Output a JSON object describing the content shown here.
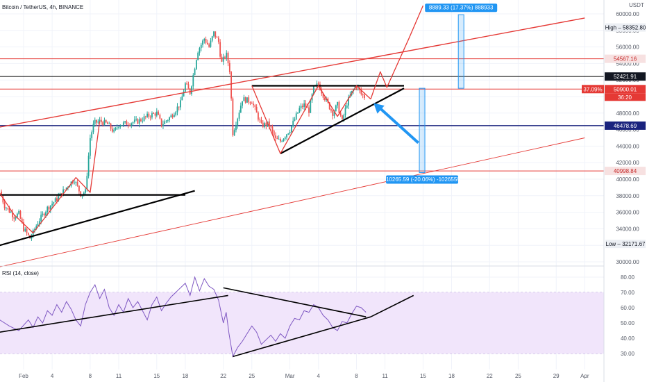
{
  "header": {
    "title": "Bitcoin / TetherUS, 4h, BINANCE"
  },
  "colors": {
    "up": "#26a69a",
    "down": "#ef5350",
    "red": "#e53935",
    "navy": "#1a237e",
    "blue": "#2196f3",
    "purple": "#7e57c2",
    "rsi_band": "#f1e5fb",
    "black": "#000000"
  },
  "chart_data": [
    {
      "type": "candlestick",
      "title": "Bitcoin / TetherUS, 4h, BINANCE",
      "currency": "USDT",
      "ylim": [
        30000,
        61000
      ],
      "price_ticks": [
        "60000.00",
        "58000.00",
        "56000.00",
        "54000.00",
        "52000.00",
        "50000.00",
        "48000.00",
        "46000.00",
        "44000.00",
        "42000.00",
        "40000.00",
        "38000.00",
        "36000.00",
        "34000.00",
        "32000.00",
        "30000.00"
      ],
      "x_ticks": [
        {
          "label": "Feb",
          "day": 1
        },
        {
          "label": "4",
          "day": 4
        },
        {
          "label": "8",
          "day": 8
        },
        {
          "label": "11",
          "day": 11
        },
        {
          "label": "15",
          "day": 15
        },
        {
          "label": "18",
          "day": 18
        },
        {
          "label": "22",
          "day": 22
        },
        {
          "label": "25",
          "day": 25
        },
        {
          "label": "Mar",
          "day": 29
        },
        {
          "label": "4",
          "day": 32
        },
        {
          "label": "8",
          "day": 36
        },
        {
          "label": "11",
          "day": 39
        },
        {
          "label": "15",
          "day": 43
        },
        {
          "label": "18",
          "day": 46
        },
        {
          "label": "22",
          "day": 50
        },
        {
          "label": "25",
          "day": 53
        },
        {
          "label": "29",
          "day": 57
        },
        {
          "label": "Apr",
          "day": 60
        }
      ],
      "price_path": [
        [
          -1.5,
          38500
        ],
        [
          -1,
          36800
        ],
        [
          0,
          35500
        ],
        [
          0.5,
          35800
        ],
        [
          1,
          34000
        ],
        [
          1.7,
          32800
        ],
        [
          2.5,
          34800
        ],
        [
          3.5,
          36500
        ],
        [
          4.5,
          37600
        ],
        [
          5.5,
          39000
        ],
        [
          6.3,
          40000
        ],
        [
          7,
          38200
        ],
        [
          7.5,
          38500
        ],
        [
          8,
          45000
        ],
        [
          8.4,
          46800
        ],
        [
          9,
          47000
        ],
        [
          9.8,
          46700
        ],
        [
          10.5,
          45700
        ],
        [
          11,
          46600
        ],
        [
          12,
          46800
        ],
        [
          13,
          47000
        ],
        [
          14,
          47600
        ],
        [
          15,
          48000
        ],
        [
          15.5,
          46600
        ],
        [
          16.5,
          47600
        ],
        [
          17.5,
          49200
        ],
        [
          18,
          51500
        ],
        [
          18.5,
          50500
        ],
        [
          19.3,
          55500
        ],
        [
          20,
          57000
        ],
        [
          20.5,
          56000
        ],
        [
          21,
          57700
        ],
        [
          21.5,
          56600
        ],
        [
          21.8,
          54000
        ],
        [
          22.3,
          55200
        ],
        [
          22.7,
          53000
        ],
        [
          23,
          45600
        ],
        [
          23.5,
          47500
        ],
        [
          24,
          49700
        ],
        [
          25,
          49400
        ],
        [
          26,
          46500
        ],
        [
          26.8,
          46700
        ],
        [
          27.5,
          44800
        ],
        [
          28,
          44600
        ],
        [
          29,
          46000
        ],
        [
          30,
          48500
        ],
        [
          30.5,
          49000
        ],
        [
          31,
          48300
        ],
        [
          31.5,
          51000
        ],
        [
          32,
          51500
        ],
        [
          32.5,
          50200
        ],
        [
          33.5,
          48000
        ],
        [
          34,
          49000
        ],
        [
          34.5,
          47000
        ],
        [
          35,
          49200
        ],
        [
          35.5,
          50500
        ],
        [
          36,
          51300
        ],
        [
          36.5,
          50300
        ],
        [
          37,
          49800
        ]
      ],
      "levels": [
        {
          "price": 54567.16,
          "label": "54567.16",
          "color": "red"
        },
        {
          "price": 52421.91,
          "label": "52421.91",
          "color": "black"
        },
        {
          "price": 50900.01,
          "label": "50900.01",
          "color": "red"
        },
        {
          "price": 46478.69,
          "label": "46478.69",
          "color": "navy"
        },
        {
          "price": 40998.84,
          "label": "40998.84",
          "color": "red"
        }
      ],
      "high": {
        "label": "High",
        "value": "58352.80"
      },
      "low": {
        "label": "Low",
        "value": "32171.67"
      },
      "current": {
        "change": "37.09%",
        "price": "50900.01",
        "countdown": "36:20"
      },
      "measure_up": {
        "label": "8889.33 (17.37%) 888933",
        "from": 51000,
        "to": 59900
      },
      "measure_down": {
        "label": "-10265.59 (-20.06%) -1026559",
        "from": 51000,
        "to": 40800
      },
      "drawings": {
        "red_channel_upper": [
          [
            -1.5,
            46300
          ],
          [
            60,
            59500
          ]
        ],
        "red_channel_lower": [
          [
            -1.5,
            29400
          ],
          [
            60,
            45000
          ]
        ],
        "rising_support_feb": [
          [
            -1.5,
            32000
          ],
          [
            19,
            38600
          ]
        ],
        "resistance_feb": [
          [
            -1.5,
            38100
          ],
          [
            18,
            38100
          ]
        ],
        "triangle_top": [
          [
            25,
            51300
          ],
          [
            41,
            51300
          ]
        ],
        "triangle_support": [
          [
            28,
            43100
          ],
          [
            41,
            51000
          ]
        ],
        "zigzag_feb": [
          [
            -1.5,
            38300
          ],
          [
            0,
            35700
          ],
          [
            2,
            33500
          ],
          [
            6.5,
            40200
          ],
          [
            8,
            38400
          ],
          [
            9,
            47000
          ]
        ],
        "zigzag_main": [
          [
            25,
            51300
          ],
          [
            28,
            43100
          ],
          [
            32,
            51300
          ],
          [
            34,
            47600
          ],
          [
            36,
            51300
          ],
          [
            37.5,
            49700
          ]
        ],
        "projection": [
          [
            37.5,
            49700
          ],
          [
            38.5,
            53000
          ],
          [
            39.2,
            51100
          ],
          [
            41.5,
            57000
          ],
          [
            43,
            61000
          ]
        ]
      }
    },
    {
      "type": "line",
      "title": "RSI (14, close)",
      "ylim": [
        24,
        88
      ],
      "ticks": [
        "80.00",
        "70.00",
        "60.00",
        "50.00",
        "40.00",
        "30.00"
      ],
      "band": [
        30,
        70
      ],
      "values": [
        [
          -1.5,
          52
        ],
        [
          -0.5,
          48
        ],
        [
          0.5,
          45
        ],
        [
          1.5,
          52
        ],
        [
          2,
          47
        ],
        [
          2.5,
          54
        ],
        [
          3,
          50
        ],
        [
          3.5,
          58
        ],
        [
          4,
          55
        ],
        [
          4.5,
          62
        ],
        [
          5,
          57
        ],
        [
          5.5,
          64
        ],
        [
          6,
          59
        ],
        [
          6.5,
          52
        ],
        [
          7,
          48
        ],
        [
          7.5,
          62
        ],
        [
          8,
          70
        ],
        [
          8.5,
          75
        ],
        [
          9,
          66
        ],
        [
          9.5,
          72
        ],
        [
          10,
          60
        ],
        [
          10.5,
          55
        ],
        [
          11,
          62
        ],
        [
          11.5,
          57
        ],
        [
          12,
          66
        ],
        [
          12.5,
          60
        ],
        [
          13,
          64
        ],
        [
          13.5,
          58
        ],
        [
          14,
          52
        ],
        [
          14.5,
          62
        ],
        [
          15,
          67
        ],
        [
          15.5,
          58
        ],
        [
          16,
          63
        ],
        [
          16.5,
          67
        ],
        [
          17,
          70
        ],
        [
          17.5,
          73
        ],
        [
          18,
          76
        ],
        [
          18.5,
          68
        ],
        [
          19,
          80
        ],
        [
          19.5,
          71
        ],
        [
          20,
          79
        ],
        [
          20.5,
          74
        ],
        [
          21,
          72
        ],
        [
          21.5,
          65
        ],
        [
          22,
          50
        ],
        [
          22.3,
          57
        ],
        [
          22.6,
          43
        ],
        [
          23,
          28
        ],
        [
          23.5,
          34
        ],
        [
          24,
          38
        ],
        [
          24.5,
          43
        ],
        [
          25,
          48
        ],
        [
          25.5,
          44
        ],
        [
          26,
          36
        ],
        [
          26.5,
          39
        ],
        [
          27,
          42
        ],
        [
          27.5,
          38
        ],
        [
          28,
          43
        ],
        [
          28.5,
          40
        ],
        [
          29,
          48
        ],
        [
          29.5,
          53
        ],
        [
          30,
          52
        ],
        [
          30.5,
          58
        ],
        [
          31,
          57
        ],
        [
          31.5,
          62
        ],
        [
          32,
          60
        ],
        [
          32.5,
          55
        ],
        [
          33,
          52
        ],
        [
          33.5,
          47
        ],
        [
          34,
          45
        ],
        [
          34.5,
          51
        ],
        [
          35,
          50
        ],
        [
          35.5,
          56
        ],
        [
          36,
          61
        ],
        [
          36.5,
          60
        ],
        [
          37,
          57
        ]
      ],
      "drawings": {
        "rising_feb": [
          [
            -1.5,
            44
          ],
          [
            22.5,
            68
          ]
        ],
        "falling_top": [
          [
            22,
            73
          ],
          [
            37,
            54
          ]
        ],
        "rising_bottom": [
          [
            23,
            28
          ],
          [
            37.5,
            54
          ]
        ],
        "extension": [
          [
            37.5,
            54
          ],
          [
            42,
            68
          ]
        ]
      }
    }
  ],
  "rsi": {
    "title": "RSI (14, close)"
  }
}
